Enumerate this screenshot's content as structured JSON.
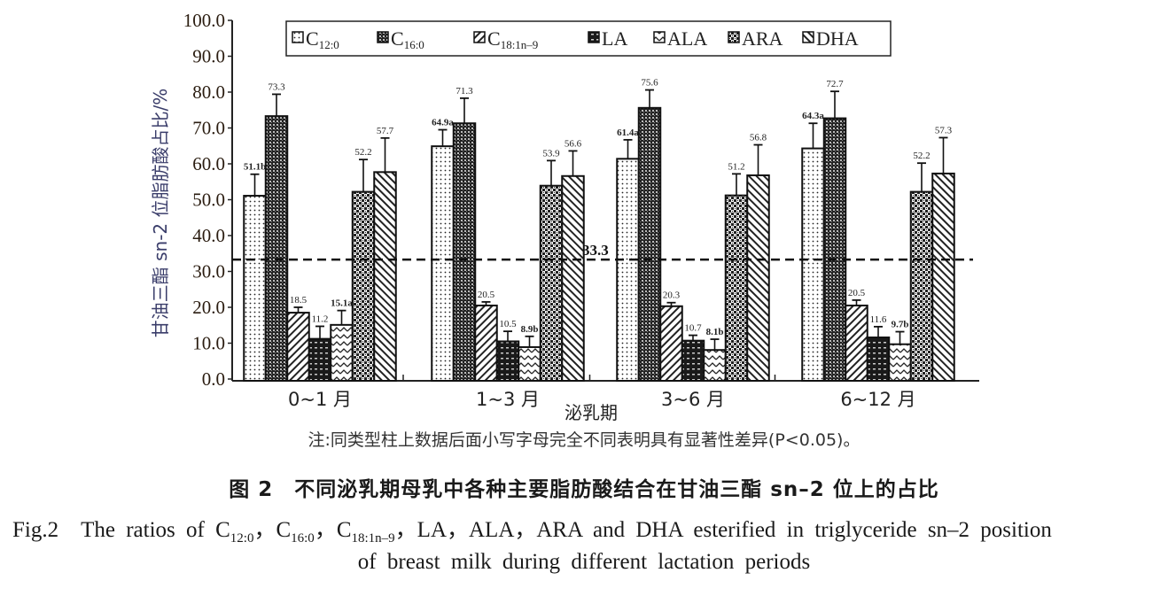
{
  "chart_data": {
    "type": "bar",
    "title": "",
    "xlabel": "泌乳期",
    "ylabel": "甘油三酯 sn-2 位脂肪酸占比/%",
    "ylim": [
      0,
      100
    ],
    "yticks": [
      "0.0",
      "10.0",
      "20.0",
      "30.0",
      "40.0",
      "50.0",
      "60.0",
      "70.0",
      "80.0",
      "90.0",
      "100.0"
    ],
    "categories": [
      "0~1 月",
      "1~3 月",
      "3~6 月",
      "6~12 月"
    ],
    "legend_position": "top",
    "reference_line": {
      "value": 33.3,
      "label": "33.3",
      "style": "dashed"
    },
    "series": [
      {
        "name": "C12:0",
        "base": "C",
        "sub": "12:0",
        "pattern": "fine-dots",
        "values": [
          51.1,
          64.9,
          61.4,
          64.3
        ],
        "labels": [
          "51.1b",
          "64.9a",
          "61.4a",
          "64.3a"
        ],
        "errors": [
          6.0,
          4.6,
          5.3,
          7.0
        ]
      },
      {
        "name": "C16:0",
        "base": "C",
        "sub": "16:0",
        "pattern": "dense-checker",
        "values": [
          73.3,
          71.3,
          75.6,
          72.7
        ],
        "labels": [
          "73.3",
          "71.3",
          "75.6",
          "72.7"
        ],
        "errors": [
          6.1,
          7.0,
          5.0,
          7.5
        ]
      },
      {
        "name": "C18:1n-9",
        "base": "C",
        "sub": "18:1n–9",
        "pattern": "diagonal-forward",
        "values": [
          18.5,
          20.5,
          20.3,
          20.5
        ],
        "labels": [
          "18.5",
          "20.5",
          "20.3",
          "20.5"
        ],
        "errors": [
          1.5,
          1.0,
          1.0,
          1.5
        ]
      },
      {
        "name": "LA",
        "base": "LA",
        "sub": "",
        "pattern": "dark-dotted",
        "values": [
          11.2,
          10.5,
          10.7,
          11.6
        ],
        "labels": [
          "11.2",
          "10.5",
          "10.7",
          "11.6"
        ],
        "errors": [
          3.5,
          2.8,
          1.5,
          3.0
        ]
      },
      {
        "name": "ALA",
        "base": "ALA",
        "sub": "",
        "pattern": "zigzag",
        "values": [
          15.1,
          8.9,
          8.1,
          9.7
        ],
        "labels": [
          "15.1a",
          "8.9b",
          "8.1b",
          "9.7b"
        ],
        "errors": [
          4.0,
          3.0,
          3.0,
          3.5
        ]
      },
      {
        "name": "ARA",
        "base": "ARA",
        "sub": "",
        "pattern": "checker",
        "values": [
          52.2,
          53.9,
          51.2,
          52.2
        ],
        "labels": [
          "52.2",
          "53.9",
          "51.2",
          "52.2"
        ],
        "errors": [
          9.0,
          7.0,
          6.0,
          8.0
        ]
      },
      {
        "name": "DHA",
        "base": "DHA",
        "sub": "",
        "pattern": "diagonal-back",
        "values": [
          57.7,
          56.6,
          56.8,
          57.3
        ],
        "labels": [
          "57.7",
          "56.6",
          "56.8",
          "57.3"
        ],
        "errors": [
          9.5,
          7.0,
          8.5,
          10.0
        ]
      }
    ]
  },
  "note": "注:同类型柱上数据后面小写字母完全不同表明具有显著性差异(P<0.05)。",
  "caption": {
    "cn": "图 2　不同泌乳期母乳中各种主要脂肪酸结合在甘油三酯 sn–2 位上的占比",
    "en_prefix": "Fig.2　The ratios of ",
    "en_c12": "C",
    "en_c12_sub": "12:0",
    "en_c16": "，C",
    "en_c16_sub": "16:0",
    "en_c18": "，C",
    "en_c18_sub": "18:1n–9",
    "en_rest": "，LA，ALA，ARA and DHA esterified in triglyceride sn–2 position",
    "en_line2": "of breast milk during different lactation periods"
  }
}
